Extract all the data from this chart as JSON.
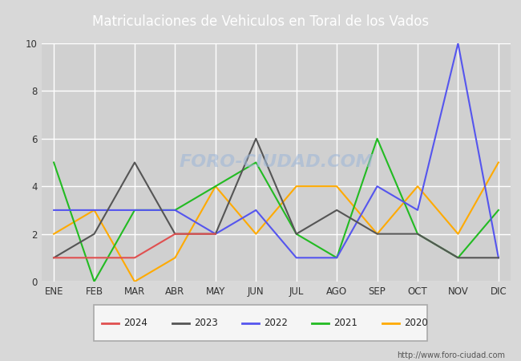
{
  "title": "Matriculaciones de Vehiculos en Toral de los Vados",
  "months": [
    "ENE",
    "FEB",
    "MAR",
    "ABR",
    "MAY",
    "JUN",
    "JUL",
    "AGO",
    "SEP",
    "OCT",
    "NOV",
    "DIC"
  ],
  "series": {
    "2024": {
      "color": "#e05050",
      "values": [
        1,
        1,
        1,
        2,
        2,
        null,
        null,
        null,
        null,
        null,
        null,
        null
      ]
    },
    "2023": {
      "color": "#555555",
      "values": [
        1,
        2,
        5,
        2,
        2,
        6,
        2,
        3,
        2,
        2,
        1,
        1
      ]
    },
    "2022": {
      "color": "#5555ee",
      "values": [
        3,
        3,
        3,
        3,
        2,
        3,
        1,
        1,
        4,
        3,
        10,
        1
      ]
    },
    "2021": {
      "color": "#22bb22",
      "values": [
        5,
        0,
        3,
        3,
        4,
        5,
        2,
        1,
        6,
        2,
        1,
        3
      ]
    },
    "2020": {
      "color": "#ffaa00",
      "values": [
        2,
        3,
        0,
        1,
        4,
        2,
        4,
        4,
        2,
        4,
        2,
        5
      ]
    }
  },
  "ylim": [
    0,
    10
  ],
  "yticks": [
    0,
    2,
    4,
    6,
    8,
    10
  ],
  "bg_color": "#d8d8d8",
  "plot_bg_color": "#d0d0d0",
  "grid_color": "#ffffff",
  "title_color": "#000000",
  "title_bg": "#4a7bc4",
  "watermark": "http://www.foro-ciudad.com",
  "watermark_text": "FORO-CIUDAD.COM",
  "legend_order": [
    "2024",
    "2023",
    "2022",
    "2021",
    "2020"
  ]
}
